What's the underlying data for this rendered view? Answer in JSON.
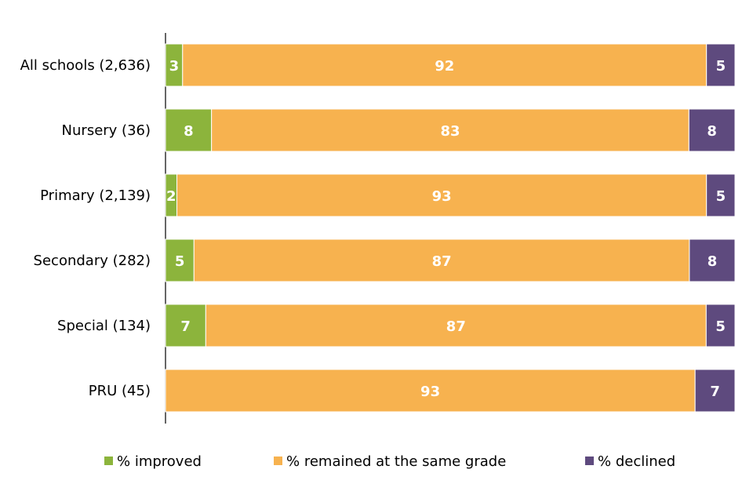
{
  "chart_data": {
    "type": "bar",
    "orientation": "horizontal",
    "stacked": true,
    "categories": [
      "All schools (2,636)",
      "Nursery (36)",
      "Primary (2,139)",
      "Secondary (282)",
      "Special (134)",
      "PRU (45)"
    ],
    "series": [
      {
        "name": "% improved",
        "color": "#8cb43c",
        "values": [
          3,
          8,
          2,
          5,
          7,
          0
        ]
      },
      {
        "name": "% remained at the same grade",
        "color": "#f7b24f",
        "values": [
          92,
          83,
          93,
          87,
          87,
          93
        ]
      },
      {
        "name": "% declined",
        "color": "#5e4a7e",
        "values": [
          5,
          8,
          5,
          8,
          5,
          7
        ]
      }
    ],
    "title": "",
    "xlabel": "",
    "ylabel": "",
    "xlim": [
      0,
      100
    ],
    "grid": false,
    "legend": "bottom"
  }
}
